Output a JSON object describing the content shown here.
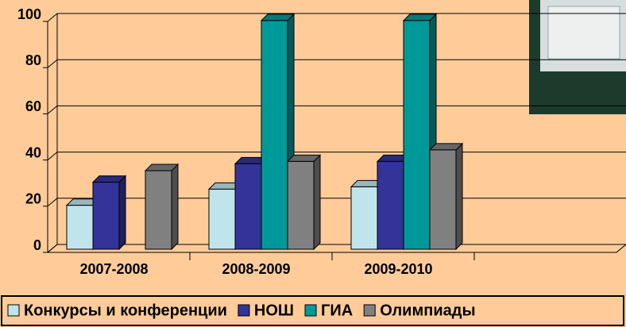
{
  "chart_data": {
    "type": "bar3d",
    "categories": [
      "2007-2008",
      "2008-2009",
      "2009-2010",
      null
    ],
    "series": [
      {
        "name": "Конкурсы и конференции",
        "color": "#c0e4ec",
        "values": [
          19,
          26,
          27,
          null
        ]
      },
      {
        "name": "НОШ",
        "color": "#333399",
        "values": [
          29,
          37,
          38,
          null
        ]
      },
      {
        "name": "ГИА",
        "color": "#009999",
        "values": [
          null,
          99,
          99,
          null
        ]
      },
      {
        "name": "Олимпиады",
        "color": "#808080",
        "values": [
          34,
          38,
          43,
          null
        ]
      }
    ],
    "ylim": [
      0,
      100
    ],
    "yticks": [
      0,
      20,
      40,
      60,
      80,
      100
    ],
    "grid": true,
    "legend": "bottom"
  }
}
